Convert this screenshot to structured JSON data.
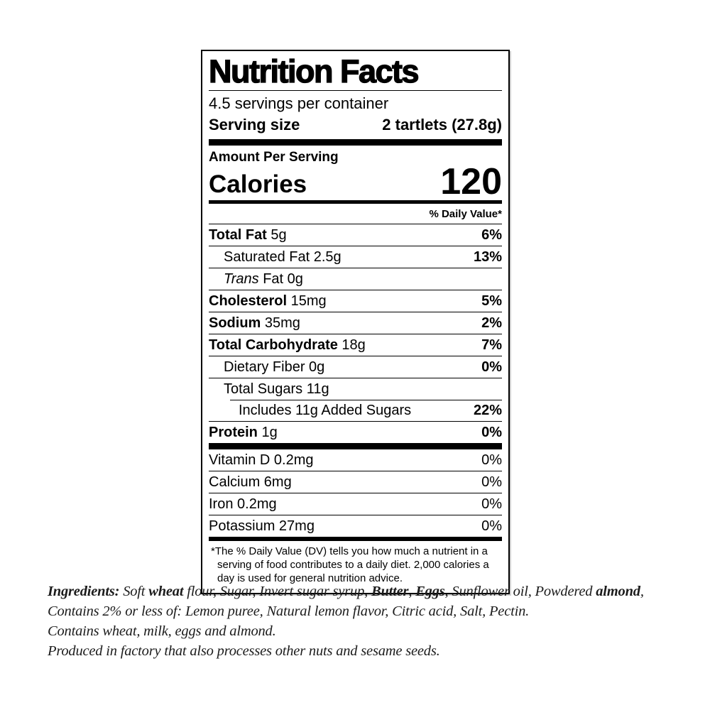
{
  "label": {
    "title": "Nutrition Facts",
    "servings_per_container": "4.5 servings per container",
    "serving_size_label": "Serving size",
    "serving_size_value": "2 tartlets (27.8g)",
    "amount_per_serving": "Amount Per Serving",
    "calories_label": "Calories",
    "calories_value": "120",
    "daily_value_header": "% Daily Value*",
    "nutrient_rows": [
      {
        "segments": [
          {
            "t": "Total Fat",
            "b": true
          },
          {
            "t": " 5g"
          }
        ],
        "pct": "6%",
        "indent": 0
      },
      {
        "segments": [
          {
            "t": "Saturated Fat 2.5g"
          }
        ],
        "pct": "13%",
        "indent": 1
      },
      {
        "segments": [
          {
            "t": "Trans",
            "i": true
          },
          {
            "t": " Fat 0g"
          }
        ],
        "pct": "",
        "indent": 1
      },
      {
        "segments": [
          {
            "t": "Cholesterol",
            "b": true
          },
          {
            "t": " 15mg"
          }
        ],
        "pct": "5%",
        "indent": 0
      },
      {
        "segments": [
          {
            "t": "Sodium",
            "b": true
          },
          {
            "t": " 35mg"
          }
        ],
        "pct": "2%",
        "indent": 0
      },
      {
        "segments": [
          {
            "t": "Total Carbohydrate",
            "b": true
          },
          {
            "t": " 18g"
          }
        ],
        "pct": "7%",
        "indent": 0
      },
      {
        "segments": [
          {
            "t": "Dietary Fiber 0g"
          }
        ],
        "pct": "0%",
        "indent": 1
      },
      {
        "segments": [
          {
            "t": "Total Sugars 11g"
          }
        ],
        "pct": "",
        "indent": 1
      },
      {
        "segments": [
          {
            "t": "Includes 11g Added Sugars"
          }
        ],
        "pct": "22%",
        "indent": 2,
        "inset_rule": true
      },
      {
        "segments": [
          {
            "t": "Protein",
            "b": true
          },
          {
            "t": " 1g"
          }
        ],
        "pct": "0%",
        "indent": 0
      }
    ],
    "micronutrient_rows": [
      {
        "segments": [
          {
            "t": "Vitamin D 0.2mg"
          }
        ],
        "pct": "0%",
        "indent": 0
      },
      {
        "segments": [
          {
            "t": "Calcium 6mg"
          }
        ],
        "pct": "0%",
        "indent": 0
      },
      {
        "segments": [
          {
            "t": "Iron 0.2mg"
          }
        ],
        "pct": "0%",
        "indent": 0
      },
      {
        "segments": [
          {
            "t": "Potassium 27mg"
          }
        ],
        "pct": "0%",
        "indent": 0
      }
    ],
    "footnote_star": "*",
    "footnote": "The % Daily Value (DV) tells you how much a nutrient in a serving of food contributes to a daily diet. 2,000 calories a day is used for general nutrition advice."
  },
  "ingredients": {
    "lines": [
      {
        "segments": [
          {
            "t": "Ingredients: ",
            "b": true
          },
          {
            "t": "Soft "
          },
          {
            "t": "wheat",
            "b": true
          },
          {
            "t": " flour, Sugar, Invert sugar syrup, "
          },
          {
            "t": "Butter",
            "b": true
          },
          {
            "t": ", "
          },
          {
            "t": "Eggs",
            "b": true
          },
          {
            "t": ", Sunflower oil, Powdered "
          },
          {
            "t": "almond",
            "b": true
          },
          {
            "t": ","
          }
        ]
      },
      {
        "segments": [
          {
            "t": "Contains 2% or less of: Lemon puree, Natural lemon flavor, Citric acid, Salt, Pectin."
          }
        ]
      },
      {
        "segments": [
          {
            "t": "Contains wheat, milk, eggs and almond."
          }
        ]
      },
      {
        "segments": [
          {
            "t": "Produced in factory that also processes other nuts and sesame seeds."
          }
        ]
      }
    ]
  }
}
